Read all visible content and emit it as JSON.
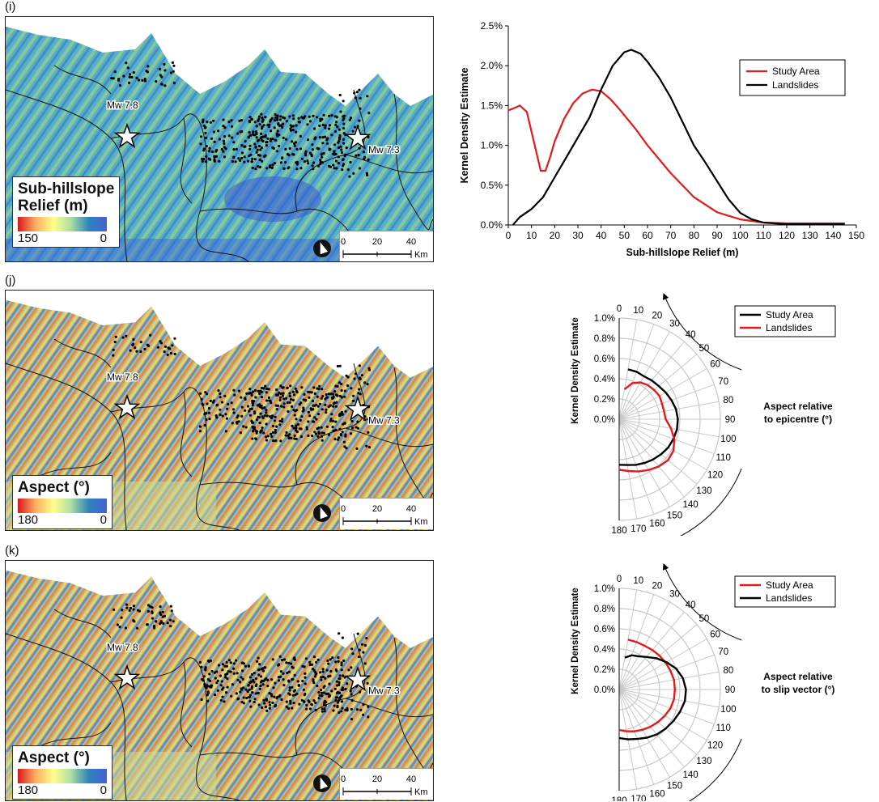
{
  "panels": [
    {
      "label": "(i)",
      "map": {
        "legend_title": "Sub-hillslope Relief (m)",
        "legend_title_line1": "Sub-hillslope",
        "legend_title_line2": "Relief (m)",
        "legend_min_label": "150",
        "legend_max_label": "0",
        "epicentre_labels": [
          "Mw 7.8",
          "Mw 7.3"
        ],
        "scale_ticks": [
          "0",
          "20",
          "40"
        ],
        "scale_unit": "Km"
      }
    },
    {
      "label": "(j)",
      "map": {
        "legend_title": "Aspect (°)",
        "legend_min_label": "180",
        "legend_max_label": "0",
        "epicentre_labels": [
          "Mw 7.8",
          "Mw 7.3"
        ],
        "scale_ticks": [
          "0",
          "20",
          "40"
        ],
        "scale_unit": "Km"
      },
      "annotation": [
        "Aspect relative",
        "to epicentre (°)"
      ]
    },
    {
      "label": "(k)",
      "map": {
        "legend_title": "Aspect (°)",
        "legend_min_label": "180",
        "legend_max_label": "0",
        "epicentre_labels": [
          "Mw 7.8",
          "Mw 7.3"
        ],
        "scale_ticks": [
          "0",
          "20",
          "40"
        ],
        "scale_unit": "Km"
      },
      "annotation": [
        "Aspect relative",
        "to slip vector (°)"
      ]
    }
  ],
  "colors": {
    "study_area": "#e31a1c",
    "landslides": "#000000",
    "grid": "#c8c8c8"
  },
  "chart_data": [
    {
      "type": "line",
      "xlabel": "Sub-hillslope Relief (m)",
      "ylabel": "Kernel Density Estimate",
      "xlim": [
        0,
        150
      ],
      "ylim": [
        0,
        2.5
      ],
      "x_ticks": [
        0,
        10,
        20,
        30,
        40,
        50,
        60,
        70,
        80,
        90,
        100,
        110,
        120,
        130,
        140,
        150
      ],
      "y_ticks": [
        "0.0%",
        "0.5%",
        "1.0%",
        "1.5%",
        "2.0%",
        "2.5%"
      ],
      "legend_position": "top-right",
      "series": [
        {
          "name": "Study Area",
          "color": "#e31a1c",
          "x": [
            0,
            2,
            5,
            8,
            11,
            14,
            16,
            18,
            20,
            24,
            28,
            32,
            36,
            40,
            44,
            48,
            55,
            60,
            70,
            80,
            90,
            100,
            110,
            120,
            130,
            140,
            145
          ],
          "y": [
            1.44,
            1.46,
            1.5,
            1.42,
            1.05,
            0.68,
            0.68,
            0.85,
            1.05,
            1.33,
            1.53,
            1.65,
            1.7,
            1.68,
            1.58,
            1.45,
            1.2,
            1.0,
            0.65,
            0.35,
            0.16,
            0.07,
            0.03,
            0.02,
            0.02,
            0.02,
            0.02
          ]
        },
        {
          "name": "Landslides",
          "color": "#000000",
          "x": [
            2,
            5,
            10,
            15,
            20,
            25,
            30,
            35,
            40,
            45,
            50,
            53,
            57,
            60,
            65,
            70,
            75,
            80,
            85,
            90,
            95,
            100,
            105,
            110,
            120,
            130,
            140,
            145
          ],
          "y": [
            0.0,
            0.1,
            0.2,
            0.35,
            0.6,
            0.85,
            1.1,
            1.35,
            1.7,
            2.0,
            2.17,
            2.2,
            2.15,
            2.05,
            1.85,
            1.6,
            1.3,
            1.0,
            0.78,
            0.55,
            0.32,
            0.15,
            0.07,
            0.03,
            0.01,
            0.01,
            0.01,
            0.01
          ]
        }
      ]
    },
    {
      "type": "line",
      "subtype": "half-polar",
      "ylabel": "Kernel Density Estimate",
      "r_ticks": [
        "0.0%",
        "0.2%",
        "0.4%",
        "0.6%",
        "0.8%",
        "1.0%"
      ],
      "rlim": [
        0,
        1.0
      ],
      "theta_ticks": [
        0,
        10,
        20,
        30,
        40,
        50,
        60,
        70,
        80,
        90,
        100,
        110,
        120,
        130,
        140,
        150,
        160,
        170,
        180
      ],
      "theta_range_deg": [
        0,
        180
      ],
      "legend_position": "top-right",
      "series": [
        {
          "name": "Study Area",
          "color": "#000000",
          "theta": [
            0,
            10,
            20,
            30,
            40,
            50,
            60,
            70,
            80,
            90,
            100,
            110,
            120,
            130,
            140,
            150,
            160,
            170,
            180
          ],
          "r": [
            0.0,
            0.5,
            0.5,
            0.49,
            0.5,
            0.51,
            0.53,
            0.55,
            0.57,
            0.58,
            0.58,
            0.57,
            0.56,
            0.54,
            0.52,
            0.5,
            0.48,
            0.46,
            0.45
          ]
        },
        {
          "name": "Landslides",
          "color": "#e31a1c",
          "theta": [
            0,
            10,
            20,
            30,
            40,
            50,
            60,
            70,
            80,
            90,
            100,
            110,
            120,
            130,
            140,
            150,
            160,
            170,
            180
          ],
          "r": [
            0.0,
            0.3,
            0.38,
            0.42,
            0.44,
            0.45,
            0.46,
            0.45,
            0.45,
            0.46,
            0.52,
            0.58,
            0.62,
            0.63,
            0.61,
            0.58,
            0.55,
            0.52,
            0.5
          ]
        }
      ]
    },
    {
      "type": "line",
      "subtype": "half-polar",
      "ylabel": "Kernel Density Estimate",
      "r_ticks": [
        "0.0%",
        "0.2%",
        "0.4%",
        "0.6%",
        "0.8%",
        "1.0%"
      ],
      "rlim": [
        0,
        1.0
      ],
      "theta_ticks": [
        0,
        10,
        20,
        30,
        40,
        50,
        60,
        70,
        80,
        90,
        100,
        110,
        120,
        130,
        140,
        150,
        160,
        170,
        180
      ],
      "theta_range_deg": [
        0,
        180
      ],
      "legend_position": "top-right",
      "series": [
        {
          "name": "Study Area",
          "color": "#e31a1c",
          "theta": [
            0,
            10,
            20,
            30,
            40,
            50,
            60,
            70,
            80,
            90,
            100,
            110,
            120,
            130,
            140,
            150,
            160,
            170,
            180
          ],
          "r": [
            0.0,
            0.5,
            0.5,
            0.5,
            0.51,
            0.52,
            0.53,
            0.54,
            0.55,
            0.55,
            0.55,
            0.54,
            0.52,
            0.5,
            0.48,
            0.46,
            0.44,
            0.42,
            0.4
          ]
        },
        {
          "name": "Landslides",
          "color": "#000000",
          "theta": [
            0,
            10,
            20,
            30,
            40,
            50,
            60,
            70,
            80,
            90,
            100,
            110,
            120,
            130,
            140,
            150,
            160,
            170,
            180
          ],
          "r": [
            0.0,
            0.32,
            0.36,
            0.38,
            0.42,
            0.48,
            0.54,
            0.6,
            0.64,
            0.66,
            0.66,
            0.64,
            0.62,
            0.6,
            0.58,
            0.55,
            0.52,
            0.5,
            0.48
          ]
        }
      ]
    }
  ]
}
